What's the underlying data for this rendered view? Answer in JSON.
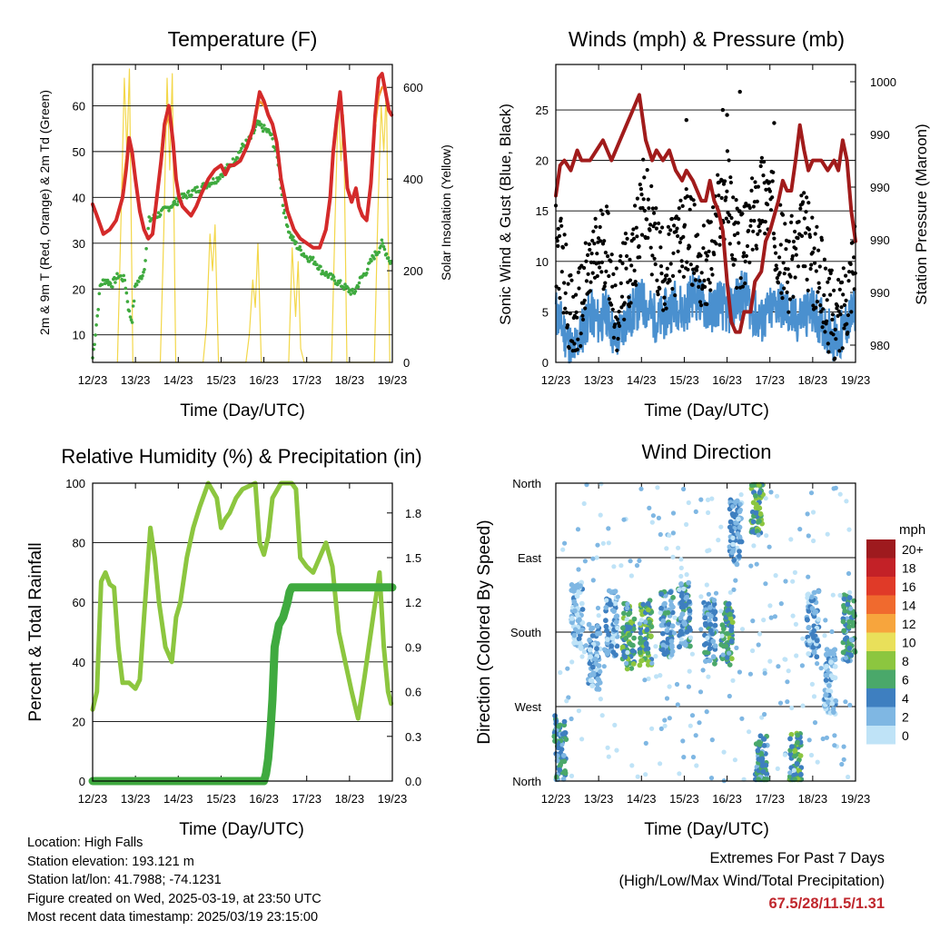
{
  "chart_data": [
    {
      "type": "line",
      "title": "Temperature (F)",
      "xlabel": "Time (Day/UTC)",
      "ylabel": "2m & 9m T (Red, Orange) & 2m Td (Green)",
      "y2label": "Solar Insolation (Yellow)",
      "x_ticks": [
        "12/23",
        "13/23",
        "14/23",
        "15/23",
        "16/23",
        "17/23",
        "18/23",
        "19/23"
      ],
      "xlim": [
        12,
        19
      ],
      "ylim": [
        4,
        69
      ],
      "y_ticks": [
        10,
        20,
        30,
        40,
        50,
        60
      ],
      "y2lim": [
        0,
        650
      ],
      "y2_ticks": [
        0,
        200,
        400,
        600
      ],
      "grid": true,
      "series": [
        {
          "color": "#d42a2a",
          "x": [
            12.0,
            12.1,
            12.25,
            12.4,
            12.55,
            12.7,
            12.78,
            12.85,
            12.92,
            13.0,
            13.1,
            13.2,
            13.3,
            13.4,
            13.5,
            13.6,
            13.68,
            13.78,
            13.88,
            13.95,
            14.02,
            14.1,
            14.2,
            14.3,
            14.42,
            14.55,
            14.7,
            14.85,
            15.0,
            15.1,
            15.2,
            15.3,
            15.45,
            15.6,
            15.75,
            15.9,
            16.0,
            16.1,
            16.2,
            16.3,
            16.4,
            16.55,
            16.7,
            16.85,
            17.0,
            17.15,
            17.3,
            17.45,
            17.55,
            17.62,
            17.7,
            17.78,
            17.85,
            17.95,
            18.05,
            18.15,
            18.22,
            18.3,
            18.4,
            18.5,
            18.6,
            18.68,
            18.76,
            18.84,
            18.92,
            18.98
          ],
          "y": [
            38.5,
            36,
            32,
            33,
            35,
            40,
            46,
            53,
            50,
            44,
            37,
            33,
            31,
            32,
            40,
            48,
            56,
            60,
            52,
            44,
            40,
            38,
            37,
            36,
            38,
            41,
            44,
            46,
            47,
            45,
            47,
            47,
            48,
            51,
            55,
            63,
            61,
            58,
            56,
            52,
            44,
            37,
            33,
            31,
            30,
            29,
            29,
            33,
            40,
            50,
            57,
            63,
            55,
            42,
            39,
            42,
            38,
            36,
            35,
            43,
            58,
            66,
            67,
            63,
            59,
            58
          ]
        },
        {
          "color": "#f5962e",
          "x": [
            12.7,
            12.78,
            12.85,
            13.6,
            13.68,
            13.78,
            15.75,
            15.9,
            16.0,
            18.6,
            18.68,
            18.76
          ],
          "y": [
            42,
            48,
            52,
            50,
            55,
            58,
            56,
            61,
            60,
            56,
            62,
            64
          ]
        },
        {
          "color": "#3faa3f",
          "x": [
            12.0,
            12.05,
            12.12,
            12.18,
            12.3,
            12.45,
            12.6,
            12.75,
            12.85,
            12.92,
            13.0,
            13.1,
            13.2,
            13.32,
            13.5,
            13.65,
            13.8,
            13.95,
            14.1,
            14.3,
            14.5,
            14.7,
            14.9,
            15.1,
            15.3,
            15.5,
            15.7,
            15.85,
            16.0,
            16.15,
            16.25,
            16.35,
            16.45,
            16.6,
            16.8,
            17.0,
            17.2,
            17.35,
            17.5,
            17.65,
            17.8,
            17.95,
            18.1,
            18.25,
            18.4,
            18.55,
            18.65,
            18.75,
            18.85,
            18.95
          ],
          "y": [
            5,
            9,
            15,
            21,
            22,
            21,
            23,
            22,
            15,
            13,
            21,
            22,
            24,
            35,
            36,
            37,
            38,
            39,
            40,
            41,
            42,
            43,
            44,
            46,
            48,
            51,
            53,
            56,
            55,
            54,
            51,
            47,
            38,
            32,
            29,
            27,
            26,
            24,
            23,
            22,
            21,
            20,
            19,
            22,
            24,
            27,
            28,
            30,
            28,
            26
          ]
        }
      ],
      "insolation": {
        "color": "#f3d74a",
        "x": [
          12.58,
          12.66,
          12.74,
          12.8,
          12.86,
          12.94,
          13.58,
          13.66,
          13.74,
          13.8,
          13.86,
          13.94,
          14.58,
          14.66,
          14.74,
          14.8,
          14.86,
          14.94,
          15.58,
          15.66,
          15.74,
          15.8,
          15.86,
          15.94,
          16.58,
          16.66,
          16.74,
          16.8,
          16.86,
          16.94,
          17.58,
          17.66,
          17.74,
          17.8,
          17.86,
          17.94,
          18.58,
          18.66,
          18.74,
          18.8,
          18.86,
          18.94
        ],
        "y": [
          0,
          300,
          620,
          460,
          640,
          0,
          0,
          280,
          620,
          420,
          630,
          0,
          0,
          80,
          280,
          200,
          300,
          0,
          0,
          60,
          180,
          120,
          260,
          0,
          0,
          250,
          100,
          220,
          30,
          0,
          0,
          300,
          580,
          440,
          540,
          0,
          0,
          320,
          560,
          460,
          600,
          0
        ]
      }
    },
    {
      "type": "scatter",
      "title": "Winds (mph) & Pressure (mb)",
      "xlabel": "Time (Day/UTC)",
      "ylabel": "Sonic Wind & Gust (Blue, Black)",
      "y2label": "Station Pressure (Maroon)",
      "x_ticks": [
        "12/23",
        "13/23",
        "14/23",
        "15/23",
        "16/23",
        "17/23",
        "18/23",
        "19/23"
      ],
      "xlim": [
        12,
        19
      ],
      "ylim": [
        0,
        29.5
      ],
      "y_ticks": [
        0,
        5,
        10,
        15,
        20,
        25
      ],
      "y2_ticks": [
        "980",
        "990",
        "990",
        "990",
        "990",
        "1000",
        "1000"
      ],
      "grid": true,
      "series": [
        {
          "color": "#4a90cf",
          "x": [
            12.0,
            12.2,
            12.4,
            12.6,
            12.8,
            13.0,
            13.2,
            13.4,
            13.6,
            13.8,
            14.0,
            14.2,
            14.4,
            14.6,
            14.8,
            15.0,
            15.2,
            15.4,
            15.6,
            15.8,
            16.0,
            16.2,
            16.4,
            16.6,
            16.8,
            17.0,
            17.2,
            17.4,
            17.6,
            17.8,
            18.0,
            18.2,
            18.4,
            18.6,
            18.8,
            19.0
          ],
          "y": [
            5,
            3,
            1,
            3,
            5,
            4,
            5,
            2,
            4,
            5,
            6,
            5,
            4,
            5,
            6,
            5,
            7,
            6,
            5,
            6,
            5,
            6,
            7,
            5,
            4,
            5,
            6,
            5,
            4,
            5,
            5,
            4,
            3,
            2,
            4,
            5
          ]
        },
        {
          "color": "#000000",
          "x": [
            12.0,
            12.2,
            12.4,
            12.6,
            12.8,
            13.0,
            13.2,
            13.4,
            13.6,
            13.8,
            14.0,
            14.2,
            14.4,
            14.6,
            14.8,
            15.0,
            15.2,
            15.4,
            15.6,
            15.8,
            16.0,
            16.2,
            16.4,
            16.6,
            16.8,
            17.0,
            17.2,
            17.4,
            17.6,
            17.8,
            18.0,
            18.2,
            18.4,
            18.6,
            18.8,
            19.0
          ],
          "y": [
            12,
            9,
            3,
            6,
            9,
            11,
            12,
            5,
            8,
            10,
            16,
            14,
            10,
            9,
            11,
            13,
            12,
            9,
            10,
            15,
            17,
            12,
            11,
            14,
            17,
            16,
            12,
            9,
            11,
            13,
            10,
            8,
            5,
            4,
            7,
            12
          ]
        },
        {
          "color": "#a11b1b",
          "x": [
            12.0,
            12.1,
            12.2,
            12.35,
            12.5,
            12.6,
            12.7,
            12.8,
            12.95,
            13.1,
            13.3,
            13.5,
            13.6,
            13.7,
            13.8,
            13.95,
            14.1,
            14.25,
            14.35,
            14.5,
            14.65,
            14.8,
            14.95,
            15.05,
            15.2,
            15.3,
            15.4,
            15.5,
            15.6,
            15.7,
            15.8,
            15.9,
            16.0,
            16.1,
            16.2,
            16.3,
            16.4,
            16.55,
            16.65,
            16.8,
            16.9,
            17.0,
            17.2,
            17.3,
            17.4,
            17.5,
            17.6,
            17.7,
            17.8,
            17.9,
            18.0,
            18.1,
            18.2,
            18.35,
            18.5,
            18.6,
            18.7,
            18.8,
            18.9,
            19.0
          ],
          "y": [
            16.5,
            19.5,
            20,
            19,
            21,
            20,
            20,
            20,
            21,
            22,
            20,
            22,
            23,
            24,
            25,
            26.5,
            22,
            20,
            21,
            20,
            21,
            19,
            18,
            19,
            18,
            17,
            16,
            16,
            18,
            16,
            15,
            13,
            8,
            4,
            3,
            3,
            5,
            5,
            8,
            9,
            12,
            13,
            16,
            18,
            17,
            17,
            20,
            23.5,
            21,
            19,
            20,
            20,
            20,
            19,
            20,
            19,
            22,
            20,
            15,
            12
          ]
        }
      ]
    },
    {
      "type": "line",
      "title": "Relative Humidity (%) & Precipitation (in)",
      "xlabel": "Time (Day/UTC)",
      "ylabel": "Percent & Total Rainfall",
      "x_ticks": [
        "12/23",
        "13/23",
        "14/23",
        "15/23",
        "16/23",
        "17/23",
        "18/23",
        "19/23"
      ],
      "xlim": [
        12,
        19
      ],
      "ylim": [
        0,
        100
      ],
      "y_ticks": [
        0,
        20,
        40,
        60,
        80,
        100
      ],
      "y2lim": [
        0,
        2.0
      ],
      "y2_ticks": [
        "0.0",
        "0.3",
        "0.6",
        "0.9",
        "1.2",
        "1.5",
        "1.8"
      ],
      "grid": true,
      "series": [
        {
          "color": "#8cc63f",
          "x": [
            12.0,
            12.1,
            12.2,
            12.3,
            12.4,
            12.5,
            12.6,
            12.7,
            12.85,
            13.0,
            13.1,
            13.2,
            13.35,
            13.45,
            13.55,
            13.7,
            13.85,
            13.95,
            14.05,
            14.2,
            14.35,
            14.5,
            14.7,
            14.9,
            15.0,
            15.1,
            15.2,
            15.35,
            15.5,
            15.65,
            15.8,
            15.9,
            16.0,
            16.1,
            16.2,
            16.4,
            16.55,
            16.65,
            16.75,
            16.85,
            17.0,
            17.15,
            17.3,
            17.45,
            17.6,
            17.75,
            17.9,
            18.05,
            18.2,
            18.35,
            18.5,
            18.6,
            18.7,
            18.8,
            18.9,
            18.97
          ],
          "y": [
            24,
            30,
            67,
            70,
            66,
            65,
            45,
            33,
            33,
            31,
            34,
            55,
            85,
            75,
            60,
            45,
            40,
            55,
            60,
            75,
            85,
            92,
            100,
            95,
            85,
            88,
            90,
            95,
            98,
            99,
            100,
            80,
            76,
            82,
            95,
            100,
            100,
            100,
            98,
            75,
            72,
            70,
            75,
            80,
            72,
            50,
            40,
            30,
            21,
            35,
            50,
            60,
            70,
            45,
            30,
            26
          ]
        },
        {
          "color": "#3faa3f",
          "x": [
            12.0,
            16.0,
            16.05,
            16.1,
            16.15,
            16.2,
            16.25,
            16.35,
            16.45,
            16.55,
            16.6,
            16.65,
            17.0,
            17.5,
            18.0,
            18.5,
            19.0
          ],
          "y": [
            0,
            0,
            0.05,
            0.15,
            0.32,
            0.55,
            0.9,
            1.05,
            1.1,
            1.2,
            1.27,
            1.3,
            1.3,
            1.3,
            1.3,
            1.3,
            1.3
          ]
        }
      ]
    },
    {
      "type": "scatter",
      "title": "Wind Direction",
      "xlabel": "Time (Day/UTC)",
      "ylabel": "Direction (Colored By Speed)",
      "x_ticks": [
        "12/23",
        "13/23",
        "14/23",
        "15/23",
        "16/23",
        "17/23",
        "18/23",
        "19/23"
      ],
      "xlim": [
        12,
        19
      ],
      "ylim": [
        0,
        360
      ],
      "y_ticks": [
        "North",
        "East",
        "South",
        "West",
        "North"
      ],
      "grid": true,
      "colorbar": {
        "label": "mph",
        "levels": [
          "20+",
          "18",
          "16",
          "14",
          "12",
          "10",
          "8",
          "6",
          "4",
          "2",
          "0"
        ],
        "colors": [
          "#9e1a1e",
          "#c32127",
          "#e03a28",
          "#f06a2e",
          "#f7a53d",
          "#e9e05a",
          "#8cc63f",
          "#4aa86a",
          "#3e7fc0",
          "#7fb7e3",
          "#bfe3f7"
        ]
      },
      "clusters": [
        {
          "x": 12.1,
          "dir": 40,
          "speed": 5
        },
        {
          "x": 12.5,
          "dir": 200,
          "speed": 2
        },
        {
          "x": 12.9,
          "dir": 150,
          "speed": 3
        },
        {
          "x": 13.3,
          "dir": 190,
          "speed": 3
        },
        {
          "x": 13.7,
          "dir": 175,
          "speed": 6
        },
        {
          "x": 14.1,
          "dir": 180,
          "speed": 7
        },
        {
          "x": 14.6,
          "dir": 190,
          "speed": 4
        },
        {
          "x": 15.0,
          "dir": 200,
          "speed": 4
        },
        {
          "x": 15.6,
          "dir": 180,
          "speed": 4
        },
        {
          "x": 16.0,
          "dir": 175,
          "speed": 6
        },
        {
          "x": 16.2,
          "dir": 300,
          "speed": 3
        },
        {
          "x": 16.7,
          "dir": 340,
          "speed": 7
        },
        {
          "x": 16.8,
          "dir": 15,
          "speed": 5
        },
        {
          "x": 17.6,
          "dir": 20,
          "speed": 6
        },
        {
          "x": 18.0,
          "dir": 190,
          "speed": 3
        },
        {
          "x": 18.4,
          "dir": 120,
          "speed": 2
        },
        {
          "x": 18.85,
          "dir": 185,
          "speed": 5
        }
      ]
    }
  ],
  "info": {
    "location": "Location: High Falls",
    "elevation": "Station elevation: 193.121 m",
    "latlon": "Station lat/lon: 41.7988; -74.1231",
    "created": "Figure created on Wed, 2025-03-19, at 23:50 UTC",
    "recent": "Most recent data timestamp: 2025/03/19 23:15:00"
  },
  "extremes": {
    "title": "Extremes For Past 7 Days",
    "subtitle": "(High/Low/Max Wind/Total Precipitation)",
    "value": "67.5/28/11.5/1.31"
  }
}
